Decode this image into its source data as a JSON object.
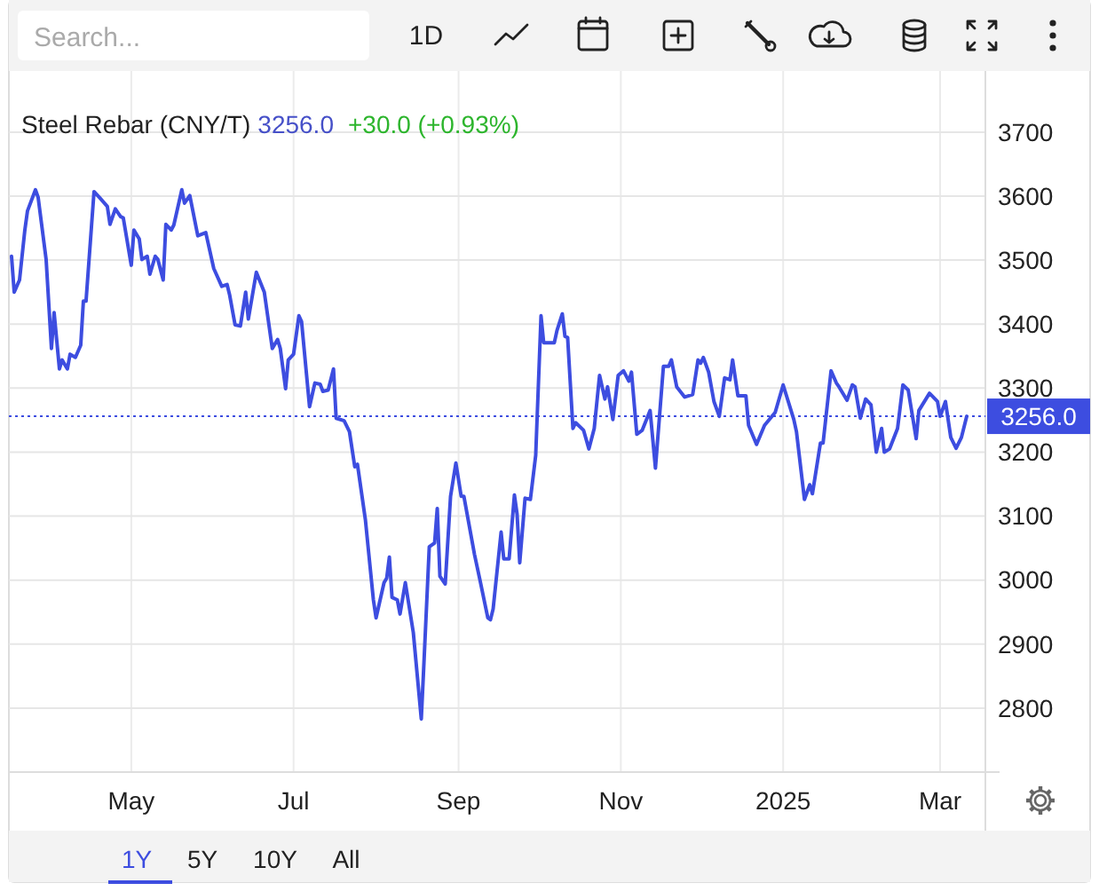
{
  "chart_data": {
    "type": "line",
    "title": "Steel Rebar (CNY/T)",
    "annotations": [
      "3256.0",
      "+30.0 (+0.93%)",
      "Search...",
      "1D",
      "1Y",
      "5Y",
      "10Y",
      "All"
    ],
    "x": [
      "2024-03-17",
      "2024-03-18",
      "2024-03-20",
      "2024-03-22",
      "2024-03-23",
      "2024-03-26",
      "2024-03-27",
      "2024-03-30",
      "2024-04-01",
      "2024-04-02",
      "2024-04-04",
      "2024-04-05",
      "2024-04-07",
      "2024-04-08",
      "2024-04-10",
      "2024-04-12",
      "2024-04-13",
      "2024-04-14",
      "2024-04-17",
      "2024-04-19",
      "2024-04-22",
      "2024-04-23",
      "2024-04-25",
      "2024-04-27",
      "2024-04-28",
      "2024-05-01",
      "2024-05-02",
      "2024-05-04",
      "2024-05-05",
      "2024-05-07",
      "2024-05-08",
      "2024-05-10",
      "2024-05-11",
      "2024-05-13",
      "2024-05-14",
      "2024-05-16",
      "2024-05-17",
      "2024-05-20",
      "2024-05-21",
      "2024-05-23",
      "2024-05-26",
      "2024-05-29",
      "2024-06-01",
      "2024-06-04",
      "2024-06-06",
      "2024-06-07",
      "2024-06-09",
      "2024-06-11",
      "2024-06-13",
      "2024-06-14",
      "2024-06-17",
      "2024-06-20",
      "2024-06-23",
      "2024-06-25",
      "2024-06-26",
      "2024-06-28",
      "2024-06-29",
      "2024-07-01",
      "2024-07-03",
      "2024-07-04",
      "2024-07-07",
      "2024-07-09",
      "2024-07-11",
      "2024-07-12",
      "2024-07-14",
      "2024-07-16",
      "2024-07-17",
      "2024-07-20",
      "2024-07-22",
      "2024-07-24",
      "2024-07-25",
      "2024-07-28",
      "2024-07-29",
      "2024-07-31",
      "2024-08-01",
      "2024-08-04",
      "2024-08-05",
      "2024-08-06",
      "2024-08-07",
      "2024-08-09",
      "2024-08-10",
      "2024-08-12",
      "2024-08-15",
      "2024-08-18",
      "2024-08-19",
      "2024-08-21",
      "2024-08-23",
      "2024-08-24",
      "2024-08-25",
      "2024-08-27",
      "2024-08-29",
      "2024-08-31",
      "2024-09-02",
      "2024-09-03",
      "2024-09-07",
      "2024-09-09",
      "2024-09-12",
      "2024-09-13",
      "2024-09-14",
      "2024-09-17",
      "2024-09-18",
      "2024-09-20",
      "2024-09-22",
      "2024-09-23",
      "2024-09-24",
      "2024-09-26",
      "2024-09-28",
      "2024-09-30",
      "2024-10-02",
      "2024-10-03",
      "2024-10-07",
      "2024-10-08",
      "2024-10-10",
      "2024-10-11",
      "2024-10-12",
      "2024-10-14",
      "2024-10-15",
      "2024-10-18",
      "2024-10-20",
      "2024-10-22",
      "2024-10-24",
      "2024-10-26",
      "2024-10-27",
      "2024-10-29",
      "2024-10-31",
      "2024-11-02",
      "2024-11-04",
      "2024-11-05",
      "2024-11-07",
      "2024-11-09",
      "2024-11-12",
      "2024-11-14",
      "2024-11-17",
      "2024-11-19",
      "2024-11-20",
      "2024-11-22",
      "2024-11-25",
      "2024-11-28",
      "2024-11-30",
      "2024-12-01",
      "2024-12-02",
      "2024-12-04",
      "2024-12-06",
      "2024-12-08",
      "2024-12-10",
      "2024-12-12",
      "2024-12-13",
      "2024-12-15",
      "2024-12-18",
      "2024-12-19",
      "2024-12-22",
      "2024-12-25",
      "2024-12-29",
      "2025-01-01",
      "2025-01-05",
      "2025-01-06",
      "2025-01-09",
      "2025-01-11",
      "2025-01-12",
      "2025-01-15",
      "2025-01-16",
      "2025-01-19",
      "2025-01-21",
      "2025-01-22",
      "2025-01-25",
      "2025-01-27",
      "2025-01-28",
      "2025-01-30",
      "2025-02-01",
      "2025-02-03",
      "2025-02-05",
      "2025-02-07",
      "2025-02-08",
      "2025-02-10",
      "2025-02-13",
      "2025-02-15",
      "2025-02-17",
      "2025-02-20",
      "2025-02-21",
      "2025-02-25",
      "2025-02-28",
      "2025-03-01",
      "2025-03-03",
      "2025-03-05",
      "2025-03-07",
      "2025-03-09",
      "2025-03-11"
    ],
    "series": [
      {
        "color": "#3d4de0",
        "values": [
          3506,
          3450,
          3469,
          3547,
          3577,
          3610,
          3598,
          3501,
          3362,
          3418,
          3330,
          3344,
          3330,
          3353,
          3348,
          3367,
          3436,
          3436,
          3607,
          3598,
          3584,
          3556,
          3580,
          3568,
          3566,
          3492,
          3547,
          3533,
          3501,
          3506,
          3478,
          3506,
          3501,
          3469,
          3556,
          3547,
          3555,
          3610,
          3589,
          3601,
          3538,
          3543,
          3487,
          3459,
          3462,
          3445,
          3399,
          3397,
          3450,
          3408,
          3481,
          3450,
          3362,
          3376,
          3362,
          3299,
          3344,
          3353,
          3413,
          3404,
          3271,
          3308,
          3306,
          3295,
          3297,
          3330,
          3253,
          3249,
          3232,
          3177,
          3181,
          3094,
          3052,
          2969,
          2941,
          2996,
          3003,
          3036,
          2973,
          2969,
          2947,
          2996,
          2918,
          2783,
          2871,
          3052,
          3058,
          3112,
          3006,
          2994,
          3131,
          3183,
          3131,
          3131,
          3040,
          3001,
          2941,
          2938,
          2955,
          3075,
          3033,
          3033,
          3133,
          3103,
          3027,
          3128,
          3126,
          3195,
          3413,
          3371,
          3371,
          3390,
          3416,
          3381,
          3379,
          3237,
          3246,
          3234,
          3205,
          3237,
          3320,
          3283,
          3302,
          3251,
          3320,
          3327,
          3311,
          3325,
          3228,
          3234,
          3265,
          3175,
          3334,
          3334,
          3344,
          3302,
          3286,
          3290,
          3344,
          3339,
          3348,
          3325,
          3279,
          3256,
          3316,
          3313,
          3344,
          3288,
          3288,
          3242,
          3212,
          3242,
          3262,
          3305,
          3251,
          3232,
          3126,
          3149,
          3135,
          3214,
          3214,
          3327,
          3308,
          3302,
          3281,
          3305,
          3302,
          3253,
          3283,
          3274,
          3200,
          3237,
          3200,
          3205,
          3237,
          3305,
          3297,
          3221,
          3265,
          3292,
          3279,
          3256,
          3279,
          3223,
          3206,
          3223,
          3256
        ]
      }
    ],
    "xlim": [
      "2024-03-16",
      "2025-03-18"
    ],
    "xticks": [
      {
        "value": "2024-05-01",
        "label": "May"
      },
      {
        "value": "2024-07-01",
        "label": "Jul"
      },
      {
        "value": "2024-09-01",
        "label": "Sep"
      },
      {
        "value": "2024-11-01",
        "label": "Nov"
      },
      {
        "value": "2025-01-01",
        "label": "2025"
      },
      {
        "value": "2025-03-01",
        "label": "Mar"
      }
    ],
    "ylim": [
      2700,
      3790
    ],
    "yticks": [
      2800,
      2900,
      3000,
      3100,
      3200,
      3300,
      3400,
      3500,
      3600,
      3700
    ],
    "grid": true,
    "ref_lines": [
      {
        "axis": "y",
        "value": 3256,
        "label": "3256.0",
        "color": "#3d4de0",
        "line_style": "dotted"
      }
    ]
  }
}
